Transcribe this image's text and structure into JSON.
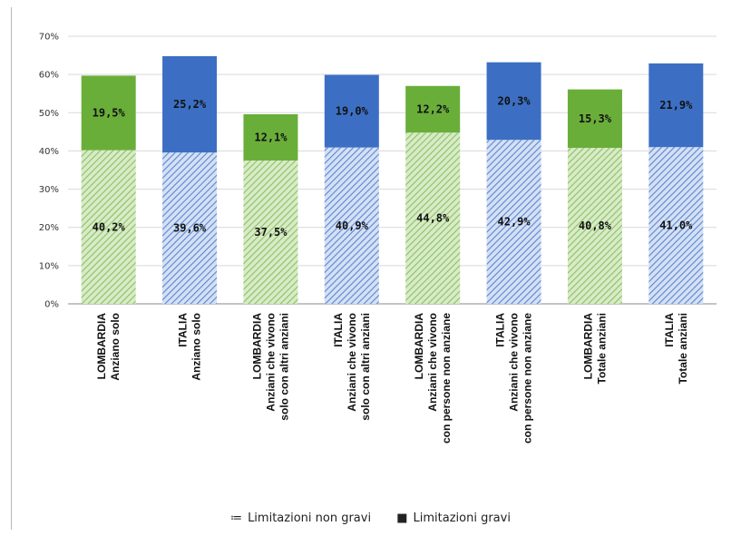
{
  "chart_data": {
    "type": "bar",
    "stacked": true,
    "ylim": [
      0,
      70
    ],
    "yticks": [
      "0%",
      "10%",
      "20%",
      "30%",
      "40%",
      "50%",
      "60%",
      "70%"
    ],
    "grid": true,
    "legend_position": "bottom",
    "categories": [
      [
        "LOMBARDIA",
        "Anziano solo"
      ],
      [
        "ITALIA",
        "Anziano solo"
      ],
      [
        "LOMBARDIA",
        "Anziani che vivono",
        "solo con altri anziani"
      ],
      [
        "ITALIA",
        "Anziani che vivono",
        "solo con altri anziani"
      ],
      [
        "LOMBARDIA",
        "Anziani che vivono",
        "con persone non anziane"
      ],
      [
        "ITALIA",
        "Anziani che vivono",
        "con persone non anziane"
      ],
      [
        "LOMBARDIA",
        "Totale anziani"
      ],
      [
        "ITALIA",
        "Totale anziani"
      ]
    ],
    "region_colors": [
      "green",
      "blue",
      "green",
      "blue",
      "green",
      "blue",
      "green",
      "blue"
    ],
    "series": [
      {
        "name": "Limitazioni non gravi",
        "values": [
          40.2,
          39.6,
          37.5,
          40.9,
          44.8,
          42.9,
          40.8,
          41.0
        ],
        "labels": [
          "40,2%",
          "39,6%",
          "37,5%",
          "40,9%",
          "44,8%",
          "42,9%",
          "40,8%",
          "41,0%"
        ]
      },
      {
        "name": "Limitazioni gravi",
        "values": [
          19.5,
          25.2,
          12.1,
          19.0,
          12.2,
          20.3,
          15.3,
          21.9
        ],
        "labels": [
          "19,5%",
          "25,2%",
          "12,1%",
          "19,0%",
          "12,2%",
          "20,3%",
          "15,3%",
          "21,9%"
        ]
      }
    ],
    "colors": {
      "green_solid": "#6aae3a",
      "green_hatch": "#a9d18e",
      "blue_solid": "#3c6fc4",
      "blue_hatch": "#8eaadb",
      "grid": "#d9d9d9",
      "axis": "#888888"
    }
  },
  "legend": {
    "items": [
      {
        "symbol": "≔",
        "label": "Limitazioni non gravi"
      },
      {
        "symbol": "■",
        "label": "Limitazioni gravi"
      }
    ]
  }
}
